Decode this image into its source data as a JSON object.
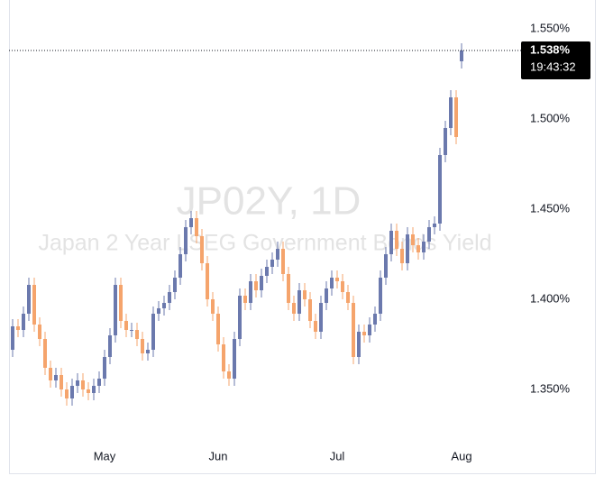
{
  "chart_data": {
    "type": "candlestick",
    "title": "JP02Y, 1D",
    "subtitle": "Japan 2 Year LSEG Government Bonds Yield",
    "up_color": "#6b79ad",
    "down_color": "#f5a46c",
    "categories": [
      null,
      null,
      null,
      null,
      null,
      null,
      null,
      null,
      null,
      null,
      null,
      null,
      null,
      null,
      null,
      null,
      null,
      "May",
      null,
      null,
      null,
      null,
      null,
      null,
      null,
      null,
      null,
      null,
      null,
      null,
      null,
      null,
      null,
      null,
      null,
      null,
      null,
      null,
      "Jun",
      null,
      null,
      null,
      null,
      null,
      null,
      null,
      null,
      null,
      null,
      null,
      null,
      null,
      null,
      null,
      null,
      null,
      null,
      null,
      null,
      null,
      "Jul",
      null,
      null,
      null,
      null,
      null,
      null,
      null,
      null,
      null,
      null,
      null,
      null,
      null,
      null,
      null,
      null,
      null,
      null,
      null,
      null,
      null,
      null,
      "Aug"
    ],
    "open": [
      1.372,
      1.385,
      1.383,
      1.392,
      1.408,
      1.386,
      1.378,
      1.362,
      1.355,
      1.358,
      1.35,
      1.345,
      1.352,
      1.355,
      1.35,
      1.348,
      1.352,
      1.356,
      1.368,
      1.38,
      1.408,
      1.388,
      1.383,
      1.383,
      1.378,
      1.37,
      1.372,
      1.392,
      1.395,
      1.398,
      1.404,
      1.412,
      1.425,
      1.44,
      1.445,
      1.435,
      1.42,
      1.4,
      1.392,
      1.375,
      1.36,
      1.356,
      1.378,
      1.402,
      1.398,
      1.41,
      1.405,
      1.413,
      1.418,
      1.422,
      1.428,
      1.414,
      1.398,
      1.392,
      1.405,
      1.4,
      1.388,
      1.382,
      1.398,
      1.406,
      1.412,
      1.41,
      1.404,
      1.398,
      1.368,
      1.382,
      1.38,
      1.386,
      1.392,
      1.412,
      1.425,
      1.438,
      1.428,
      1.42,
      1.436,
      1.43,
      1.426,
      1.432,
      1.44,
      1.442,
      1.48,
      1.495,
      1.512,
      1.532
    ],
    "high": [
      1.389,
      1.389,
      1.396,
      1.412,
      1.412,
      1.39,
      1.382,
      1.366,
      1.362,
      1.362,
      1.354,
      1.356,
      1.359,
      1.359,
      1.354,
      1.356,
      1.36,
      1.372,
      1.384,
      1.412,
      1.412,
      1.392,
      1.387,
      1.387,
      1.382,
      1.376,
      1.396,
      1.399,
      1.402,
      1.408,
      1.416,
      1.429,
      1.444,
      1.449,
      1.449,
      1.439,
      1.424,
      1.404,
      1.396,
      1.379,
      1.364,
      1.382,
      1.406,
      1.406,
      1.414,
      1.414,
      1.417,
      1.422,
      1.426,
      1.432,
      1.432,
      1.418,
      1.402,
      1.409,
      1.409,
      1.404,
      1.392,
      1.402,
      1.41,
      1.416,
      1.416,
      1.414,
      1.408,
      1.402,
      1.386,
      1.386,
      1.39,
      1.396,
      1.416,
      1.429,
      1.442,
      1.442,
      1.432,
      1.44,
      1.44,
      1.434,
      1.436,
      1.444,
      1.446,
      1.484,
      1.499,
      1.516,
      1.516,
      1.542
    ],
    "low": [
      1.368,
      1.379,
      1.379,
      1.388,
      1.382,
      1.374,
      1.358,
      1.351,
      1.351,
      1.346,
      1.341,
      1.341,
      1.348,
      1.346,
      1.344,
      1.344,
      1.348,
      1.352,
      1.364,
      1.376,
      1.384,
      1.379,
      1.379,
      1.374,
      1.366,
      1.366,
      1.368,
      1.388,
      1.391,
      1.394,
      1.4,
      1.408,
      1.421,
      1.436,
      1.431,
      1.416,
      1.396,
      1.388,
      1.371,
      1.356,
      1.352,
      1.352,
      1.374,
      1.394,
      1.394,
      1.401,
      1.401,
      1.409,
      1.414,
      1.418,
      1.41,
      1.394,
      1.388,
      1.388,
      1.396,
      1.384,
      1.378,
      1.378,
      1.394,
      1.402,
      1.406,
      1.4,
      1.394,
      1.364,
      1.364,
      1.376,
      1.376,
      1.382,
      1.388,
      1.408,
      1.421,
      1.424,
      1.416,
      1.416,
      1.426,
      1.422,
      1.422,
      1.428,
      1.436,
      1.438,
      1.476,
      1.491,
      1.486,
      1.528
    ],
    "close": [
      1.385,
      1.383,
      1.392,
      1.408,
      1.386,
      1.378,
      1.362,
      1.355,
      1.358,
      1.35,
      1.345,
      1.352,
      1.355,
      1.35,
      1.348,
      1.352,
      1.356,
      1.368,
      1.38,
      1.408,
      1.388,
      1.383,
      1.383,
      1.378,
      1.37,
      1.372,
      1.392,
      1.395,
      1.398,
      1.404,
      1.412,
      1.425,
      1.44,
      1.445,
      1.435,
      1.42,
      1.4,
      1.392,
      1.375,
      1.36,
      1.356,
      1.378,
      1.402,
      1.398,
      1.41,
      1.405,
      1.413,
      1.418,
      1.422,
      1.428,
      1.414,
      1.398,
      1.392,
      1.405,
      1.4,
      1.388,
      1.382,
      1.398,
      1.406,
      1.412,
      1.41,
      1.404,
      1.398,
      1.368,
      1.382,
      1.38,
      1.386,
      1.392,
      1.412,
      1.425,
      1.438,
      1.428,
      1.42,
      1.436,
      1.43,
      1.426,
      1.432,
      1.44,
      1.442,
      1.48,
      1.495,
      1.512,
      1.49,
      1.538
    ],
    "ylim": [
      1.321,
      1.566
    ],
    "yticks": [
      {
        "value": 1.35,
        "label": "1.350%"
      },
      {
        "value": 1.4,
        "label": "1.400%"
      },
      {
        "value": 1.45,
        "label": "1.450%"
      },
      {
        "value": 1.5,
        "label": "1.500%"
      },
      {
        "value": 1.55,
        "label": "1.550%"
      }
    ],
    "last_price": {
      "value": 1.538,
      "label": "1.538%",
      "time": "19:43:32"
    }
  }
}
